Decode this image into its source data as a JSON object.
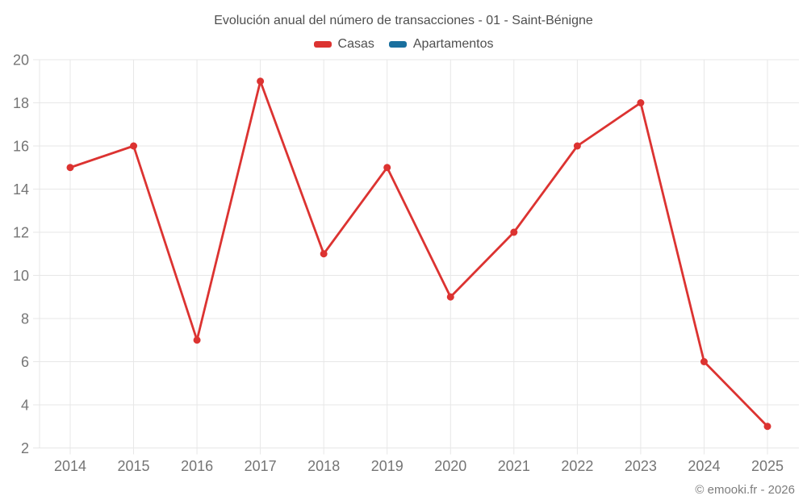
{
  "page": {
    "title": "Evolución anual del número de transacciones - 01 - Saint-Bénigne",
    "watermark": "© emooki.fr - 2026"
  },
  "colors": {
    "casas": "#dc3331",
    "apartamentos": "#196f9e",
    "grid": "#e7e7e7",
    "tick_label": "#757575",
    "title_text": "#4f4f4f",
    "watermark_text": "#7d7d7d"
  },
  "chart_data": {
    "type": "line",
    "title": "Evolución anual del número de transacciones - 01 - Saint-Bénigne",
    "categories": [
      "2014",
      "2015",
      "2016",
      "2017",
      "2018",
      "2019",
      "2020",
      "2021",
      "2022",
      "2023",
      "2024",
      "2025"
    ],
    "series": [
      {
        "name": "Casas",
        "color": "#dc3331",
        "values": [
          15,
          16,
          7,
          19,
          11,
          15,
          9,
          12,
          16,
          18,
          6,
          3
        ]
      },
      {
        "name": "Apartamentos",
        "color": "#196f9e",
        "values": []
      }
    ],
    "xlabel": "",
    "ylabel": "",
    "ylim": [
      2,
      20
    ],
    "ytick_step": 2,
    "grid": true,
    "legend_position": "top"
  }
}
